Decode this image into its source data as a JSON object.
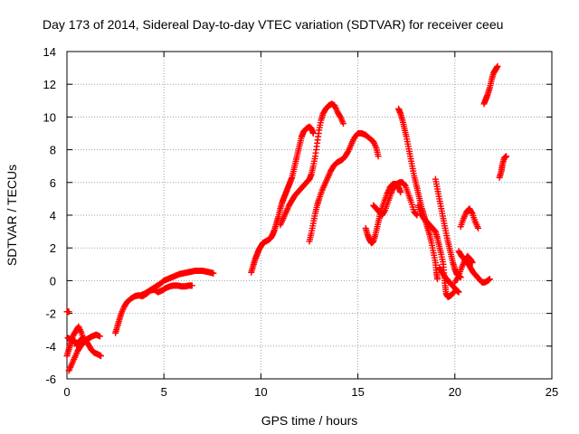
{
  "chart_data": {
    "type": "scatter",
    "title": "Day 173 of 2014, Sidereal Day-to-day VTEC variation (SDTVAR) for receiver ceeu",
    "xlabel": "GPS time / hours",
    "ylabel": "SDTVAR / TECUs",
    "xlim": [
      0,
      25
    ],
    "ylim": [
      -6,
      14
    ],
    "xticks": [
      "0",
      "5",
      "10",
      "15",
      "20",
      "25"
    ],
    "yticks": [
      "-6",
      "-4",
      "-2",
      "0",
      "2",
      "4",
      "6",
      "8",
      "10",
      "12",
      "14"
    ],
    "grid": true,
    "marker": "+",
    "color": "#ff0000",
    "series": [
      {
        "points": [
          [
            0.0,
            -4.6
          ],
          [
            0.1,
            -4.2
          ],
          [
            0.2,
            -3.8
          ],
          [
            0.3,
            -3.4
          ],
          [
            0.45,
            -3.1
          ],
          [
            0.6,
            -2.8
          ],
          [
            0.75,
            -3.2
          ],
          [
            0.9,
            -3.7
          ]
        ]
      },
      {
        "points": [
          [
            0.05,
            -3.5
          ],
          [
            0.2,
            -3.6
          ],
          [
            0.35,
            -3.7
          ],
          [
            0.5,
            -3.8
          ],
          [
            0.65,
            -3.9
          ],
          [
            0.8,
            -3.6
          ]
        ]
      },
      {
        "points": [
          [
            0.1,
            -5.5
          ],
          [
            0.25,
            -5.1
          ],
          [
            0.4,
            -4.7
          ],
          [
            0.55,
            -4.3
          ],
          [
            0.7,
            -4.0
          ],
          [
            0.85,
            -3.8
          ],
          [
            1.0,
            -3.6
          ],
          [
            1.15,
            -3.5
          ],
          [
            1.3,
            -3.4
          ],
          [
            1.5,
            -3.3
          ],
          [
            1.7,
            -3.4
          ]
        ]
      },
      {
        "points": [
          [
            0.5,
            -4.0
          ],
          [
            0.65,
            -3.7
          ],
          [
            0.8,
            -3.5
          ],
          [
            0.95,
            -3.6
          ],
          [
            1.1,
            -3.9
          ],
          [
            1.25,
            -4.2
          ],
          [
            1.4,
            -4.4
          ],
          [
            1.6,
            -4.5
          ],
          [
            1.75,
            -4.6
          ]
        ]
      },
      {
        "points": [
          [
            0.0,
            -1.9
          ],
          [
            0.1,
            -1.9
          ]
        ]
      },
      {
        "points": [
          [
            2.5,
            -3.2
          ],
          [
            2.6,
            -2.8
          ],
          [
            2.7,
            -2.4
          ],
          [
            2.8,
            -2.0
          ],
          [
            2.95,
            -1.6
          ],
          [
            3.1,
            -1.3
          ],
          [
            3.3,
            -1.1
          ],
          [
            3.5,
            -0.95
          ],
          [
            3.7,
            -0.9
          ],
          [
            3.9,
            -0.95
          ],
          [
            4.1,
            -0.8
          ],
          [
            4.3,
            -0.6
          ],
          [
            4.5,
            -0.55
          ],
          [
            4.7,
            -0.7
          ],
          [
            4.9,
            -0.6
          ],
          [
            5.1,
            -0.45
          ],
          [
            5.3,
            -0.35
          ],
          [
            5.5,
            -0.3
          ],
          [
            5.7,
            -0.3
          ],
          [
            5.9,
            -0.35
          ],
          [
            6.1,
            -0.35
          ],
          [
            6.3,
            -0.3
          ],
          [
            6.45,
            -0.3
          ]
        ]
      },
      {
        "points": [
          [
            3.8,
            -0.9
          ],
          [
            4.0,
            -0.8
          ],
          [
            4.2,
            -0.65
          ],
          [
            4.4,
            -0.5
          ],
          [
            4.6,
            -0.35
          ],
          [
            4.8,
            -0.2
          ],
          [
            5.0,
            0.0
          ],
          [
            5.2,
            0.1
          ],
          [
            5.4,
            0.2
          ],
          [
            5.6,
            0.3
          ],
          [
            5.8,
            0.4
          ],
          [
            6.0,
            0.45
          ],
          [
            6.2,
            0.5
          ],
          [
            6.4,
            0.55
          ],
          [
            6.6,
            0.6
          ],
          [
            6.8,
            0.6
          ],
          [
            7.0,
            0.6
          ],
          [
            7.2,
            0.55
          ],
          [
            7.4,
            0.5
          ],
          [
            7.55,
            0.45
          ]
        ]
      },
      {
        "points": [
          [
            9.5,
            0.5
          ],
          [
            9.6,
            0.9
          ],
          [
            9.7,
            1.3
          ],
          [
            9.8,
            1.6
          ],
          [
            9.9,
            1.9
          ],
          [
            10.0,
            2.1
          ],
          [
            10.1,
            2.3
          ],
          [
            10.25,
            2.4
          ],
          [
            10.4,
            2.5
          ],
          [
            10.5,
            2.6
          ],
          [
            10.6,
            2.8
          ],
          [
            10.7,
            3.1
          ],
          [
            10.8,
            3.5
          ],
          [
            10.9,
            3.9
          ],
          [
            11.0,
            4.4
          ],
          [
            11.1,
            4.8
          ],
          [
            11.2,
            5.1
          ],
          [
            11.3,
            5.4
          ],
          [
            11.4,
            5.7
          ],
          [
            11.5,
            6.0
          ],
          [
            11.6,
            6.3
          ],
          [
            11.7,
            6.8
          ],
          [
            11.8,
            7.3
          ],
          [
            11.9,
            7.8
          ],
          [
            12.0,
            8.3
          ],
          [
            12.1,
            8.8
          ],
          [
            12.2,
            9.1
          ],
          [
            12.35,
            9.3
          ],
          [
            12.5,
            9.4
          ],
          [
            12.6,
            9.3
          ],
          [
            12.7,
            9.0
          ]
        ]
      },
      {
        "points": [
          [
            11.0,
            3.4
          ],
          [
            11.15,
            3.8
          ],
          [
            11.3,
            4.2
          ],
          [
            11.45,
            4.6
          ],
          [
            11.6,
            4.9
          ],
          [
            11.75,
            5.2
          ],
          [
            11.9,
            5.4
          ],
          [
            12.05,
            5.6
          ],
          [
            12.2,
            5.8
          ],
          [
            12.35,
            6.0
          ],
          [
            12.5,
            6.2
          ],
          [
            12.6,
            6.5
          ],
          [
            12.7,
            7.0
          ],
          [
            12.8,
            7.6
          ],
          [
            12.9,
            8.4
          ],
          [
            13.0,
            9.2
          ],
          [
            13.1,
            9.8
          ],
          [
            13.2,
            10.2
          ],
          [
            13.35,
            10.5
          ],
          [
            13.5,
            10.7
          ],
          [
            13.65,
            10.8
          ],
          [
            13.8,
            10.7
          ],
          [
            13.95,
            10.3
          ],
          [
            14.1,
            10.0
          ],
          [
            14.25,
            9.6
          ]
        ]
      },
      {
        "points": [
          [
            12.5,
            2.4
          ],
          [
            12.6,
            2.9
          ],
          [
            12.7,
            3.5
          ],
          [
            12.8,
            4.1
          ],
          [
            12.9,
            4.6
          ],
          [
            13.0,
            5.0
          ],
          [
            13.15,
            5.5
          ],
          [
            13.3,
            5.9
          ],
          [
            13.45,
            6.3
          ],
          [
            13.6,
            6.7
          ],
          [
            13.75,
            7.0
          ],
          [
            13.9,
            7.2
          ],
          [
            14.05,
            7.3
          ],
          [
            14.2,
            7.4
          ],
          [
            14.35,
            7.6
          ],
          [
            14.5,
            7.9
          ],
          [
            14.65,
            8.3
          ],
          [
            14.8,
            8.7
          ],
          [
            15.0,
            9.0
          ],
          [
            15.2,
            9.0
          ],
          [
            15.4,
            8.9
          ],
          [
            15.6,
            8.7
          ],
          [
            15.8,
            8.5
          ],
          [
            15.95,
            8.1
          ],
          [
            16.05,
            7.6
          ]
        ]
      },
      {
        "points": [
          [
            15.4,
            3.2
          ],
          [
            15.5,
            2.8
          ],
          [
            15.6,
            2.5
          ],
          [
            15.7,
            2.3
          ],
          [
            15.8,
            2.4
          ],
          [
            15.9,
            2.8
          ],
          [
            16.0,
            3.3
          ],
          [
            16.1,
            3.8
          ],
          [
            16.2,
            4.3
          ],
          [
            16.35,
            4.8
          ],
          [
            16.5,
            5.3
          ],
          [
            16.65,
            5.7
          ],
          [
            16.8,
            5.9
          ],
          [
            16.95,
            5.9
          ],
          [
            17.1,
            5.7
          ],
          [
            17.2,
            5.4
          ]
        ]
      },
      {
        "points": [
          [
            15.8,
            4.6
          ],
          [
            15.95,
            4.4
          ],
          [
            16.1,
            4.2
          ],
          [
            16.25,
            4.0
          ],
          [
            16.4,
            4.3
          ],
          [
            16.55,
            4.8
          ],
          [
            16.7,
            5.3
          ],
          [
            16.85,
            5.7
          ],
          [
            17.0,
            5.9
          ],
          [
            17.15,
            6.0
          ],
          [
            17.3,
            6.0
          ],
          [
            17.45,
            5.8
          ],
          [
            17.6,
            5.3
          ],
          [
            17.75,
            4.8
          ],
          [
            17.9,
            4.2
          ],
          [
            18.05,
            4.0
          ]
        ]
      },
      {
        "points": [
          [
            17.1,
            10.5
          ],
          [
            17.2,
            10.2
          ],
          [
            17.3,
            9.8
          ],
          [
            17.4,
            9.3
          ],
          [
            17.5,
            8.8
          ],
          [
            17.6,
            8.2
          ],
          [
            17.7,
            7.6
          ],
          [
            17.8,
            7.0
          ],
          [
            17.9,
            6.4
          ],
          [
            18.0,
            5.9
          ],
          [
            18.1,
            5.4
          ],
          [
            18.2,
            4.9
          ],
          [
            18.3,
            4.4
          ],
          [
            18.4,
            4.0
          ],
          [
            18.5,
            3.6
          ],
          [
            18.6,
            3.2
          ],
          [
            18.7,
            2.8
          ],
          [
            18.8,
            2.3
          ],
          [
            18.9,
            1.7
          ],
          [
            19.0,
            1.1
          ],
          [
            19.05,
            0.5
          ],
          [
            19.1,
            0.1
          ]
        ]
      },
      {
        "points": [
          [
            18.1,
            4.6
          ],
          [
            18.25,
            4.1
          ],
          [
            18.4,
            3.8
          ],
          [
            18.55,
            3.6
          ],
          [
            18.7,
            3.4
          ],
          [
            18.85,
            3.2
          ],
          [
            19.0,
            3.0
          ],
          [
            19.1,
            2.6
          ],
          [
            19.2,
            2.1
          ],
          [
            19.3,
            1.6
          ],
          [
            19.4,
            1.0
          ],
          [
            19.45,
            0.3
          ],
          [
            19.5,
            -0.3
          ],
          [
            19.55,
            -0.8
          ],
          [
            19.65,
            -1.0
          ],
          [
            19.8,
            -0.9
          ],
          [
            19.95,
            -0.7
          ]
        ]
      },
      {
        "points": [
          [
            19.0,
            6.2
          ],
          [
            19.1,
            5.6
          ],
          [
            19.2,
            5.0
          ],
          [
            19.3,
            4.4
          ],
          [
            19.4,
            3.8
          ],
          [
            19.5,
            3.2
          ],
          [
            19.6,
            2.6
          ],
          [
            19.7,
            2.1
          ],
          [
            19.8,
            1.6
          ],
          [
            19.9,
            1.1
          ],
          [
            20.0,
            0.7
          ],
          [
            20.1,
            0.4
          ],
          [
            20.2,
            0.3
          ],
          [
            20.3,
            0.2
          ]
        ]
      },
      {
        "points": [
          [
            19.2,
            0.8
          ],
          [
            19.35,
            0.5
          ],
          [
            19.5,
            0.2
          ],
          [
            19.65,
            0.0
          ],
          [
            19.8,
            -0.2
          ],
          [
            19.95,
            -0.4
          ],
          [
            20.1,
            -0.6
          ],
          [
            20.2,
            -0.7
          ]
        ]
      },
      {
        "points": [
          [
            20.0,
            -0.1
          ],
          [
            20.2,
            0.3
          ],
          [
            20.35,
            0.8
          ],
          [
            20.5,
            1.2
          ],
          [
            20.65,
            1.5
          ],
          [
            20.8,
            1.3
          ],
          [
            20.9,
            1.1
          ]
        ]
      },
      {
        "points": [
          [
            20.3,
            3.3
          ],
          [
            20.45,
            3.8
          ],
          [
            20.6,
            4.2
          ],
          [
            20.75,
            4.4
          ],
          [
            20.9,
            4.1
          ],
          [
            21.05,
            3.6
          ],
          [
            21.2,
            3.2
          ]
        ]
      },
      {
        "points": [
          [
            20.2,
            1.8
          ],
          [
            20.35,
            1.5
          ],
          [
            20.5,
            1.3
          ],
          [
            20.65,
            1.1
          ],
          [
            20.8,
            0.8
          ],
          [
            20.95,
            0.5
          ],
          [
            21.1,
            0.3
          ],
          [
            21.25,
            0.1
          ],
          [
            21.4,
            -0.1
          ],
          [
            21.55,
            -0.1
          ],
          [
            21.7,
            0.0
          ],
          [
            21.8,
            0.1
          ]
        ]
      },
      {
        "points": [
          [
            21.5,
            10.8
          ],
          [
            21.6,
            11.1
          ],
          [
            21.7,
            11.4
          ],
          [
            21.8,
            11.8
          ],
          [
            21.9,
            12.3
          ],
          [
            22.0,
            12.7
          ],
          [
            22.1,
            12.9
          ],
          [
            22.2,
            13.1
          ]
        ]
      },
      {
        "points": [
          [
            22.3,
            6.3
          ],
          [
            22.4,
            6.7
          ],
          [
            22.45,
            7.1
          ],
          [
            22.55,
            7.5
          ],
          [
            22.65,
            7.6
          ]
        ]
      }
    ]
  }
}
